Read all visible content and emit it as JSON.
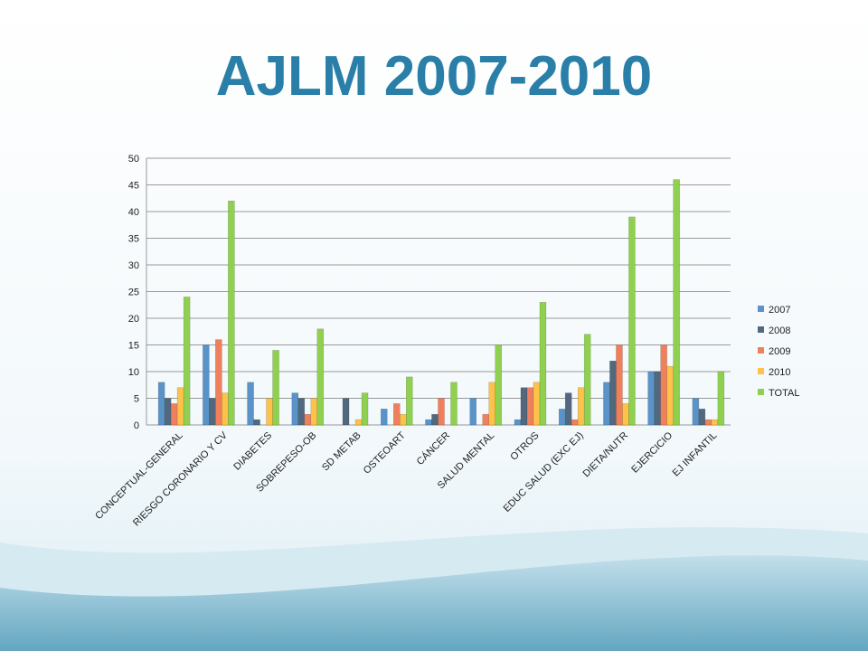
{
  "chart_data": {
    "type": "bar",
    "title": "AJLM 2007-2010",
    "categories": [
      "CONCEPTUAL-GENERAL",
      "RIESGO CORONARIO Y CV",
      "DIABETES",
      "SOBREPESO-OB",
      "SD METAB",
      "OSTEOART",
      "CÁNCER",
      "SALUD MENTAL",
      "OTROS",
      "EDUC SALUD (EXC EJ)",
      "DIETA/NUTR",
      "EJERCICIO",
      "EJ INFANTIL"
    ],
    "series": [
      {
        "name": "2007",
        "color": "#5a93c8",
        "values": [
          8,
          15,
          8,
          6,
          0,
          3,
          1,
          5,
          1,
          3,
          8,
          10,
          5
        ]
      },
      {
        "name": "2008",
        "color": "#52687e",
        "values": [
          5,
          5,
          1,
          5,
          5,
          0,
          2,
          0,
          7,
          6,
          12,
          10,
          3
        ]
      },
      {
        "name": "2009",
        "color": "#f0805c",
        "values": [
          4,
          16,
          0,
          2,
          0,
          4,
          5,
          2,
          7,
          1,
          15,
          15,
          1
        ]
      },
      {
        "name": "2010",
        "color": "#fdc24a",
        "values": [
          7,
          6,
          5,
          5,
          1,
          2,
          0,
          8,
          8,
          7,
          4,
          11,
          1
        ]
      },
      {
        "name": "TOTAL",
        "color": "#8fd14f",
        "values": [
          24,
          42,
          14,
          18,
          6,
          9,
          8,
          15,
          23,
          17,
          39,
          46,
          10
        ]
      }
    ],
    "ylim": [
      0,
      50
    ],
    "yticks": [
      0,
      5,
      10,
      15,
      20,
      25,
      30,
      35,
      40,
      45,
      50
    ],
    "grid": true,
    "legend": "right"
  }
}
